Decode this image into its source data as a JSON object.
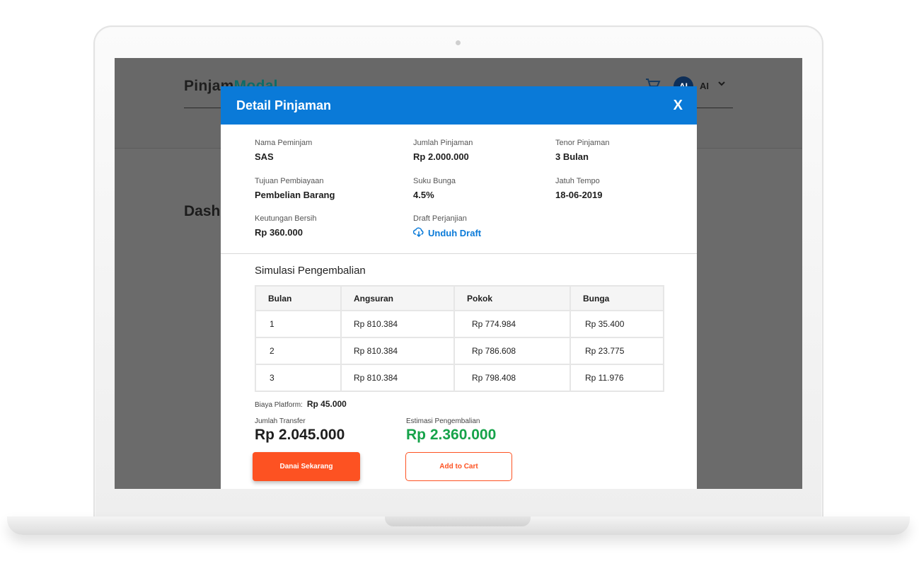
{
  "app": {
    "logo_prefix": "Pinjam",
    "logo_suffix": "Modal",
    "user_initials": "AI",
    "user_name": "AI",
    "page_title": "Dashboard"
  },
  "modal": {
    "title": "Detail Pinjaman",
    "close_label": "X",
    "fields": {
      "nama_peminjam": {
        "label": "Nama Peminjam",
        "value": "SAS"
      },
      "jumlah_pinjaman": {
        "label": "Jumlah Pinjaman",
        "value": "Rp 2.000.000"
      },
      "tenor_pinjaman": {
        "label": "Tenor Pinjaman",
        "value": "3 Bulan"
      },
      "tujuan_pembiayaan": {
        "label": "Tujuan Pembiayaan",
        "value": "Pembelian Barang"
      },
      "suku_bunga": {
        "label": "Suku Bunga",
        "value": "4.5%"
      },
      "jatuh_tempo": {
        "label": "Jatuh Tempo",
        "value": "18-06-2019"
      },
      "keuntungan_bersih": {
        "label": "Keutungan Bersih",
        "value": "Rp 360.000"
      },
      "draft_perjanjian": {
        "label": "Draft Perjanjian",
        "link": "Unduh Draft"
      }
    },
    "simulation": {
      "title": "Simulasi Pengembalian",
      "headers": [
        "Bulan",
        "Angsuran",
        "Pokok",
        "Bunga"
      ],
      "rows": [
        [
          "1",
          "Rp 810.384",
          "Rp 774.984",
          "Rp 35.400"
        ],
        [
          "2",
          "Rp 810.384",
          "Rp 786.608",
          "Rp 23.775"
        ],
        [
          "3",
          "Rp 810.384",
          "Rp 798.408",
          "Rp 11.976"
        ]
      ]
    },
    "platform_fee": {
      "label": "Biaya Platform:",
      "value": "Rp 45.000"
    },
    "transfer": {
      "label": "Jumlah Transfer",
      "value": "Rp 2.045.000"
    },
    "estimate": {
      "label": "Estimasi Pengembalian",
      "value": "Rp 2.360.000"
    },
    "buttons": {
      "primary": "Danai Sekarang",
      "secondary": "Add to Cart"
    }
  },
  "colors": {
    "header_blue": "#0a7ad8",
    "accent_orange": "#fd5222",
    "estimate_green": "#16a34a",
    "text_dark": "#1e1e1e"
  }
}
